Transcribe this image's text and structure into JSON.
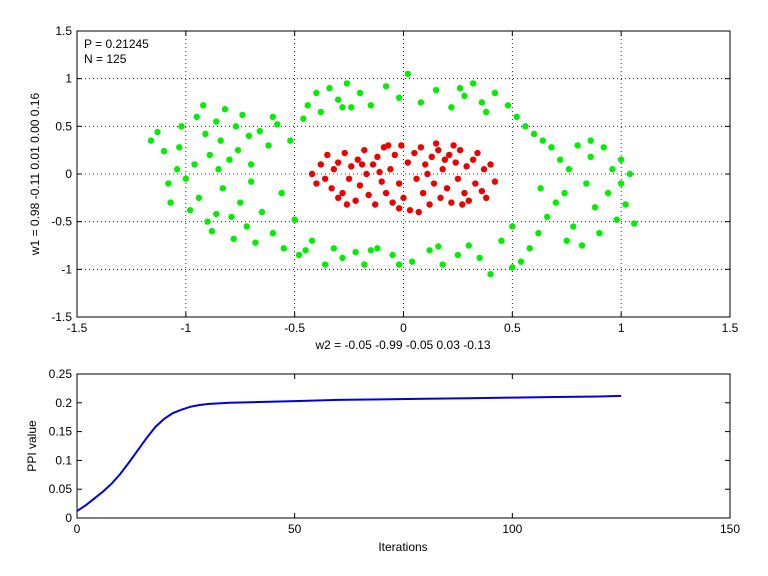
{
  "chart_data": [
    {
      "type": "scatter",
      "annotations": [
        "P = 0.21245",
        "N = 125"
      ],
      "xlabel": "w2 = -0.05  -0.99  -0.05  0.03  -0.13",
      "ylabel": "w1 = 0.98  -0.11  0.01  0.00  0.16",
      "xlim": [
        -1.5,
        1.5
      ],
      "ylim": [
        -1.5,
        1.5
      ],
      "xticks": [
        "-1.5",
        "-1",
        "-0.5",
        "0",
        "0.5",
        "1",
        "1.5"
      ],
      "yticks": [
        "-1.5",
        "-1",
        "-0.5",
        "0",
        "0.5",
        "1",
        "1.5"
      ],
      "grid": true,
      "colors": {
        "class_outer": "#00ee00",
        "class_inner": "#ee0000"
      },
      "series": [
        {
          "color": "#00ee00",
          "points": [
            [
              -1.16,
              0.35
            ],
            [
              -1.13,
              0.44
            ],
            [
              -1.1,
              0.24
            ],
            [
              -1.08,
              -0.1
            ],
            [
              -1.07,
              -0.3
            ],
            [
              -1.04,
              0.05
            ],
            [
              -1.03,
              0.28
            ],
            [
              -1.02,
              0.5
            ],
            [
              -0.98,
              -0.38
            ],
            [
              -0.96,
              0.1
            ],
            [
              -0.95,
              0.6
            ],
            [
              -0.94,
              -0.25
            ],
            [
              -0.92,
              0.72
            ],
            [
              -0.91,
              0.42
            ],
            [
              -0.9,
              -0.5
            ],
            [
              -0.89,
              0.2
            ],
            [
              -0.88,
              -0.6
            ],
            [
              -0.86,
              0.55
            ],
            [
              -0.85,
              0.05
            ],
            [
              -0.84,
              0.35
            ],
            [
              -0.83,
              -0.15
            ],
            [
              -0.82,
              0.68
            ],
            [
              -0.8,
              0.15
            ],
            [
              -0.79,
              -0.45
            ],
            [
              -0.78,
              -0.68
            ],
            [
              -0.77,
              0.5
            ],
            [
              -0.76,
              0.25
            ],
            [
              -0.75,
              -0.3
            ],
            [
              -0.74,
              0.62
            ],
            [
              -0.72,
              -0.55
            ],
            [
              -0.71,
              0.4
            ],
            [
              -0.7,
              0.1
            ],
            [
              -0.68,
              -0.72
            ],
            [
              -0.66,
              0.45
            ],
            [
              -0.65,
              -0.4
            ],
            [
              -0.62,
              0.3
            ],
            [
              -0.6,
              -0.62
            ],
            [
              -0.58,
              0.52
            ],
            [
              -0.56,
              -0.2
            ],
            [
              -0.55,
              -0.78
            ],
            [
              -0.52,
              0.35
            ],
            [
              -0.5,
              -0.48
            ],
            [
              -0.48,
              -0.85
            ],
            [
              -0.46,
              0.58
            ],
            [
              -0.44,
              0.72
            ],
            [
              -0.42,
              -0.7
            ],
            [
              -0.4,
              0.85
            ],
            [
              -0.38,
              0.65
            ],
            [
              -0.36,
              -0.95
            ],
            [
              -0.34,
              0.9
            ],
            [
              -0.32,
              -0.78
            ],
            [
              -0.3,
              0.78
            ],
            [
              -0.28,
              -0.88
            ],
            [
              -0.26,
              0.95
            ],
            [
              -0.24,
              0.7
            ],
            [
              -0.22,
              -0.82
            ],
            [
              -0.2,
              0.85
            ],
            [
              -0.18,
              -0.95
            ],
            [
              -0.15,
              0.72
            ],
            [
              -0.12,
              -0.78
            ],
            [
              -0.08,
              0.92
            ],
            [
              -0.05,
              -0.85
            ],
            [
              -0.02,
              0.8
            ],
            [
              0.02,
              1.05
            ],
            [
              0.04,
              -0.92
            ],
            [
              0.08,
              0.75
            ],
            [
              0.12,
              -0.8
            ],
            [
              0.15,
              0.88
            ],
            [
              0.18,
              -0.95
            ],
            [
              0.22,
              0.7
            ],
            [
              0.25,
              -0.85
            ],
            [
              0.28,
              0.82
            ],
            [
              0.3,
              -0.75
            ],
            [
              0.32,
              0.95
            ],
            [
              0.35,
              -0.88
            ],
            [
              0.38,
              0.65
            ],
            [
              0.4,
              -1.05
            ],
            [
              0.42,
              0.85
            ],
            [
              0.45,
              -0.7
            ],
            [
              0.48,
              0.72
            ],
            [
              0.5,
              -0.55
            ],
            [
              0.52,
              0.6
            ],
            [
              0.54,
              -0.92
            ],
            [
              0.56,
              0.5
            ],
            [
              0.58,
              -0.78
            ],
            [
              0.6,
              0.42
            ],
            [
              0.62,
              -0.62
            ],
            [
              0.64,
              0.35
            ],
            [
              0.66,
              -0.45
            ],
            [
              0.68,
              0.28
            ],
            [
              0.7,
              -0.3
            ],
            [
              0.72,
              0.15
            ],
            [
              0.74,
              -0.2
            ],
            [
              0.76,
              0.05
            ],
            [
              0.78,
              -0.55
            ],
            [
              0.8,
              0.3
            ],
            [
              0.82,
              -0.75
            ],
            [
              0.84,
              -0.1
            ],
            [
              0.86,
              0.18
            ],
            [
              0.88,
              -0.35
            ],
            [
              0.9,
              -0.62
            ],
            [
              0.92,
              0.28
            ],
            [
              0.94,
              -0.2
            ],
            [
              0.96,
              0.05
            ],
            [
              0.98,
              -0.48
            ],
            [
              1.0,
              0.15
            ],
            [
              1.02,
              -0.32
            ],
            [
              1.04,
              0.0
            ],
            [
              1.06,
              -0.52
            ],
            [
              -0.45,
              -0.8
            ],
            [
              -0.15,
              -0.8
            ],
            [
              0.16,
              -0.76
            ],
            [
              0.36,
              0.75
            ],
            [
              0.5,
              -0.98
            ],
            [
              -0.6,
              0.6
            ],
            [
              -0.86,
              -0.42
            ],
            [
              0.75,
              -0.7
            ],
            [
              0.86,
              0.35
            ],
            [
              -0.02,
              -0.95
            ],
            [
              -0.28,
              0.7
            ],
            [
              0.26,
              0.9
            ],
            [
              -0.7,
              -0.08
            ],
            [
              0.63,
              -0.15
            ],
            [
              1.0,
              -0.1
            ],
            [
              -1.0,
              -0.05
            ]
          ]
        },
        {
          "color": "#ee0000",
          "points": [
            [
              -0.42,
              0.0
            ],
            [
              -0.4,
              -0.1
            ],
            [
              -0.38,
              0.1
            ],
            [
              -0.36,
              -0.05
            ],
            [
              -0.35,
              0.2
            ],
            [
              -0.33,
              -0.15
            ],
            [
              -0.32,
              0.05
            ],
            [
              -0.3,
              0.12
            ],
            [
              -0.28,
              -0.2
            ],
            [
              -0.27,
              0.22
            ],
            [
              -0.25,
              -0.05
            ],
            [
              -0.24,
              0.08
            ],
            [
              -0.22,
              -0.28
            ],
            [
              -0.21,
              0.15
            ],
            [
              -0.2,
              -0.12
            ],
            [
              -0.18,
              0.25
            ],
            [
              -0.17,
              0.0
            ],
            [
              -0.16,
              -0.22
            ],
            [
              -0.14,
              0.1
            ],
            [
              -0.13,
              -0.32
            ],
            [
              -0.12,
              0.18
            ],
            [
              -0.1,
              -0.08
            ],
            [
              -0.09,
              0.28
            ],
            [
              -0.08,
              -0.2
            ],
            [
              -0.06,
              0.05
            ],
            [
              -0.05,
              -0.3
            ],
            [
              -0.04,
              0.2
            ],
            [
              -0.02,
              -0.1
            ],
            [
              -0.01,
              0.3
            ],
            [
              0.0,
              -0.25
            ],
            [
              0.02,
              0.12
            ],
            [
              0.03,
              -0.38
            ],
            [
              0.05,
              0.22
            ],
            [
              0.06,
              -0.05
            ],
            [
              0.08,
              0.28
            ],
            [
              0.09,
              -0.2
            ],
            [
              0.1,
              0.1
            ],
            [
              0.12,
              -0.32
            ],
            [
              0.13,
              0.18
            ],
            [
              0.14,
              -0.1
            ],
            [
              0.16,
              0.25
            ],
            [
              0.17,
              -0.25
            ],
            [
              0.18,
              0.05
            ],
            [
              0.2,
              -0.15
            ],
            [
              0.21,
              0.2
            ],
            [
              0.22,
              -0.3
            ],
            [
              0.24,
              0.12
            ],
            [
              0.25,
              -0.05
            ],
            [
              0.26,
              0.25
            ],
            [
              0.28,
              -0.2
            ],
            [
              0.29,
              0.08
            ],
            [
              0.3,
              -0.28
            ],
            [
              0.32,
              0.15
            ],
            [
              0.33,
              -0.1
            ],
            [
              0.34,
              0.22
            ],
            [
              0.36,
              -0.18
            ],
            [
              0.37,
              0.05
            ],
            [
              0.38,
              -0.25
            ],
            [
              0.4,
              0.1
            ],
            [
              0.42,
              -0.08
            ],
            [
              -0.26,
              -0.32
            ],
            [
              0.07,
              -0.4
            ],
            [
              -0.02,
              -0.36
            ],
            [
              0.15,
              0.32
            ],
            [
              -0.07,
              0.3
            ],
            [
              0.23,
              0.3
            ],
            [
              -0.3,
              -0.25
            ],
            [
              0.27,
              -0.32
            ],
            [
              -0.19,
              0.1
            ],
            [
              0.11,
              0.0
            ],
            [
              0.19,
              0.15
            ],
            [
              -0.11,
              0.02
            ]
          ]
        }
      ]
    },
    {
      "type": "line",
      "xlabel": "Iterations",
      "ylabel": "PPI value",
      "xlim": [
        0,
        150
      ],
      "ylim": [
        0,
        0.25
      ],
      "xticks": [
        "0",
        "50",
        "100",
        "150"
      ],
      "yticks": [
        "0",
        "0.05",
        "0.1",
        "0.15",
        "0.2",
        "0.25"
      ],
      "grid": false,
      "colors": {
        "line": "#0000dd"
      },
      "series": [
        {
          "color": "#0000dd",
          "x": [
            0,
            2,
            4,
            6,
            8,
            10,
            12,
            14,
            16,
            18,
            20,
            22,
            24,
            26,
            28,
            30,
            35,
            40,
            50,
            60,
            70,
            80,
            90,
            100,
            110,
            120,
            125
          ],
          "y": [
            0.012,
            0.022,
            0.034,
            0.046,
            0.06,
            0.077,
            0.097,
            0.118,
            0.139,
            0.158,
            0.172,
            0.182,
            0.188,
            0.193,
            0.196,
            0.198,
            0.2,
            0.201,
            0.203,
            0.205,
            0.206,
            0.207,
            0.208,
            0.209,
            0.21,
            0.211,
            0.212
          ]
        }
      ]
    }
  ]
}
